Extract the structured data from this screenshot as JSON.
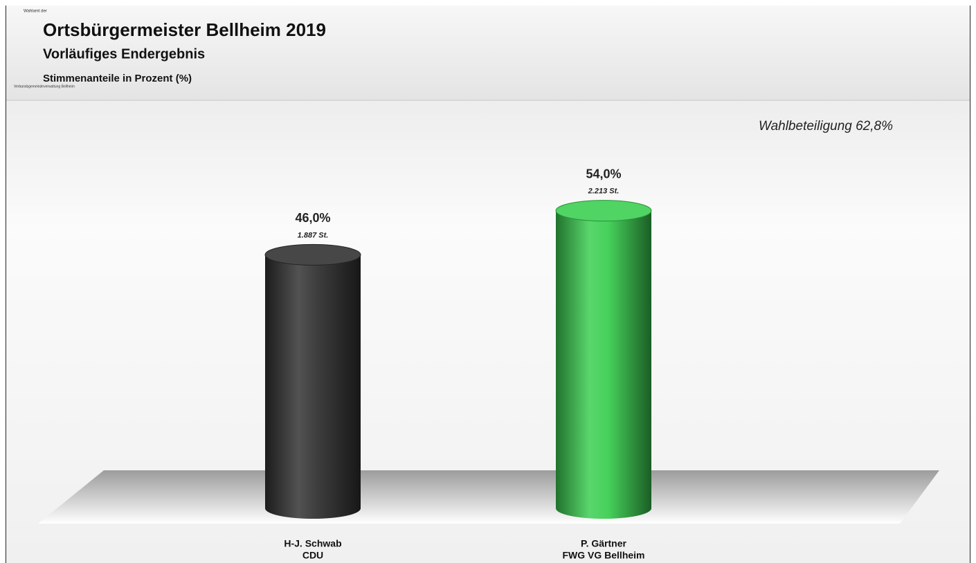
{
  "chart_data": {
    "type": "cylinder",
    "source_top": "Wahlamt der",
    "source": "Verbandsgemeindeverwaltung Bellheim",
    "title": "Ortsbürgermeister Bellheim 2019",
    "subtitle": "Vorläufiges Endergebnis",
    "measure_label": "Stimmenanteile in Prozent (%)",
    "annotation": "Wahlbeteiligung 62,8%",
    "categories": [
      "H-J. Schwab",
      "P. Gärtner"
    ],
    "parties": [
      "CDU",
      "FWG VG Bellheim"
    ],
    "values": [
      46.0,
      54.0
    ],
    "value_labels": [
      "46,0%",
      "54,0%"
    ],
    "votes": [
      1887,
      2213
    ],
    "vote_labels": [
      "1.887 St.",
      "2.213 St."
    ],
    "colors": [
      "#333333",
      "#3ccf52"
    ]
  }
}
